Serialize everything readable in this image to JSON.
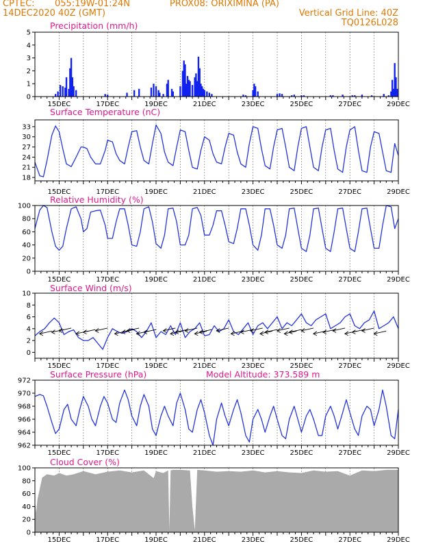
{
  "header": {
    "source": "CPTEC:",
    "coords": "055:19W-01:24N",
    "location": "PROX08: ORIXIMINA (PA)",
    "init_time": "14DEC2020 40Z (GMT)",
    "vgrid": "Vertical Grid Line: 40Z",
    "code": "TQ0126L028"
  },
  "colors": {
    "line": "#2233dd",
    "bar": "#1122ee",
    "cloud": "#aaaaaa",
    "title": "#e0188c",
    "header": "#e07800"
  },
  "chart_data": [
    {
      "type": "bar",
      "title": "Precipitation (mm/h)",
      "ylim": [
        0,
        5
      ],
      "yticks": [
        0,
        1,
        2,
        3,
        4,
        5
      ],
      "xlim": [
        14,
        29
      ],
      "xticks": [
        "15DEC",
        "17DEC",
        "19DEC",
        "21DEC",
        "23DEC",
        "25DEC",
        "27DEC",
        "29DEC"
      ],
      "x": [
        14.85,
        14.95,
        15.05,
        15.15,
        15.25,
        15.3,
        15.4,
        15.45,
        15.5,
        15.55,
        15.6,
        15.7,
        16.9,
        17.0,
        17.8,
        18.1,
        18.3,
        18.8,
        18.9,
        19.0,
        19.1,
        19.15,
        19.3,
        19.45,
        19.5,
        19.65,
        19.7,
        20.0,
        20.1,
        20.15,
        20.2,
        20.25,
        20.3,
        20.35,
        20.4,
        20.5,
        20.6,
        20.65,
        20.7,
        20.75,
        20.8,
        20.85,
        20.9,
        20.95,
        21.0,
        21.1,
        21.2,
        21.3,
        22.6,
        22.7,
        23.0,
        23.05,
        23.1,
        23.2,
        24.0,
        24.1,
        24.2,
        24.6,
        24.7,
        25.0,
        25.1,
        26.2,
        26.3,
        26.7,
        27.1,
        27.2,
        27.5,
        27.9,
        28.4,
        28.6,
        28.7,
        28.8,
        28.75,
        28.85,
        28.9,
        28.95
      ],
      "values": [
        0.2,
        0.4,
        0.9,
        0.8,
        0.7,
        1.5,
        0.6,
        2.2,
        3.0,
        1.5,
        0.8,
        0.5,
        0.2,
        0.15,
        0.3,
        0.5,
        0.6,
        0.7,
        1.0,
        0.8,
        0.5,
        0.3,
        0.2,
        1.0,
        1.3,
        0.6,
        0.4,
        0.8,
        2.0,
        2.8,
        2.5,
        1.0,
        1.6,
        1.3,
        1.2,
        0.9,
        1.5,
        1.8,
        1.2,
        3.1,
        2.2,
        1.0,
        0.8,
        0.6,
        0.5,
        0.4,
        0.3,
        0.2,
        0.15,
        0.1,
        0.5,
        1.0,
        0.8,
        0.4,
        0.2,
        0.25,
        0.2,
        0.1,
        0.15,
        0.1,
        0.1,
        0.1,
        0.1,
        0.15,
        0.1,
        0.1,
        0.15,
        0.1,
        0.2,
        0.1,
        0.4,
        0.6,
        1.3,
        2.6,
        1.5,
        0.6
      ]
    },
    {
      "type": "line",
      "title": "Surface Temperature (nC)",
      "ylim": [
        17,
        35
      ],
      "yticks": [
        18,
        21,
        24,
        27,
        30,
        33
      ],
      "xlim": [
        14,
        29
      ],
      "xticks": [
        "15DEC",
        "17DEC",
        "19DEC",
        "21DEC",
        "23DEC",
        "25DEC",
        "27DEC",
        "29DEC"
      ],
      "x": [
        14.0,
        14.2,
        14.35,
        14.5,
        14.7,
        14.85,
        15.0,
        15.15,
        15.3,
        15.5,
        15.7,
        15.9,
        16.0,
        16.15,
        16.3,
        16.5,
        16.7,
        16.9,
        17.0,
        17.2,
        17.35,
        17.5,
        17.7,
        17.85,
        18.0,
        18.2,
        18.35,
        18.5,
        18.7,
        18.85,
        19.0,
        19.2,
        19.35,
        19.5,
        19.7,
        19.85,
        20.0,
        20.2,
        20.35,
        20.5,
        20.7,
        20.85,
        21.0,
        21.2,
        21.35,
        21.5,
        21.7,
        21.85,
        22.0,
        22.2,
        22.35,
        22.5,
        22.7,
        22.85,
        23.0,
        23.2,
        23.35,
        23.5,
        23.7,
        23.85,
        24.0,
        24.2,
        24.35,
        24.5,
        24.7,
        24.85,
        25.0,
        25.2,
        25.35,
        25.5,
        25.7,
        25.85,
        26.0,
        26.2,
        26.35,
        26.5,
        26.7,
        26.85,
        27.0,
        27.2,
        27.35,
        27.5,
        27.7,
        27.85,
        28.0,
        28.2,
        28.35,
        28.5,
        28.7,
        28.85,
        29.0
      ],
      "values": [
        22.5,
        18.5,
        18.2,
        23.0,
        30.5,
        33.2,
        31.5,
        26.5,
        22.0,
        21.2,
        24.0,
        27.0,
        27.0,
        26.5,
        24.0,
        22.0,
        22.0,
        26.0,
        29.0,
        28.5,
        25.0,
        23.0,
        22.0,
        27.0,
        31.5,
        31.8,
        27.0,
        23.0,
        22.0,
        28.0,
        33.5,
        31.0,
        25.5,
        22.5,
        21.5,
        27.0,
        32.0,
        31.5,
        26.0,
        21.0,
        20.5,
        26.0,
        30.0,
        29.0,
        25.0,
        22.5,
        22.0,
        27.0,
        31.0,
        30.5,
        25.5,
        22.0,
        21.0,
        28.0,
        33.0,
        32.5,
        26.5,
        21.5,
        20.5,
        27.0,
        32.0,
        32.5,
        27.0,
        21.0,
        20.0,
        27.0,
        32.5,
        33.0,
        27.0,
        21.0,
        20.0,
        27.0,
        32.0,
        32.5,
        26.0,
        20.5,
        19.5,
        27.0,
        32.0,
        33.0,
        26.0,
        20.0,
        19.5,
        27.0,
        31.5,
        31.0,
        25.5,
        20.0,
        19.5,
        28.0,
        24.5
      ]
    },
    {
      "type": "line",
      "title": "Relative Humidity (%)",
      "ylim": [
        0,
        100
      ],
      "yticks": [
        0,
        20,
        40,
        60,
        80,
        100
      ],
      "xlim": [
        14,
        29
      ],
      "xticks": [
        "15DEC",
        "17DEC",
        "19DEC",
        "21DEC",
        "23DEC",
        "25DEC",
        "27DEC",
        "29DEC"
      ],
      "x": [
        14.0,
        14.2,
        14.35,
        14.5,
        14.7,
        14.85,
        15.0,
        15.15,
        15.3,
        15.5,
        15.7,
        15.9,
        16.0,
        16.15,
        16.3,
        16.5,
        16.7,
        16.9,
        17.0,
        17.2,
        17.35,
        17.5,
        17.7,
        17.85,
        18.0,
        18.2,
        18.35,
        18.5,
        18.7,
        18.85,
        19.0,
        19.2,
        19.35,
        19.5,
        19.7,
        19.85,
        20.0,
        20.2,
        20.35,
        20.5,
        20.7,
        20.85,
        21.0,
        21.2,
        21.35,
        21.5,
        21.7,
        21.85,
        22.0,
        22.2,
        22.35,
        22.5,
        22.7,
        22.85,
        23.0,
        23.2,
        23.35,
        23.5,
        23.7,
        23.85,
        24.0,
        24.2,
        24.35,
        24.5,
        24.7,
        24.85,
        25.0,
        25.2,
        25.35,
        25.5,
        25.7,
        25.85,
        26.0,
        26.2,
        26.35,
        26.5,
        26.7,
        26.85,
        27.0,
        27.2,
        27.35,
        27.5,
        27.7,
        27.85,
        28.0,
        28.2,
        28.35,
        28.5,
        28.7,
        28.85,
        29.0
      ],
      "values": [
        65,
        93,
        100,
        97,
        60,
        38,
        32,
        38,
        65,
        95,
        98,
        80,
        60,
        65,
        90,
        92,
        93,
        70,
        50,
        50,
        75,
        95,
        95,
        70,
        40,
        38,
        60,
        95,
        98,
        75,
        42,
        35,
        55,
        95,
        96,
        75,
        40,
        40,
        55,
        95,
        97,
        85,
        55,
        55,
        70,
        92,
        92,
        70,
        45,
        42,
        65,
        95,
        95,
        70,
        40,
        32,
        55,
        95,
        95,
        70,
        40,
        35,
        55,
        95,
        96,
        65,
        35,
        30,
        55,
        95,
        96,
        65,
        35,
        30,
        60,
        95,
        96,
        65,
        35,
        30,
        60,
        95,
        96,
        65,
        35,
        35,
        70,
        100,
        98,
        65,
        80
      ]
    },
    {
      "type": "line",
      "title": "Surface Wind (m/s)",
      "ylim": [
        -1,
        10
      ],
      "yticks": [
        0,
        2,
        4,
        6,
        8,
        10
      ],
      "xlim": [
        14,
        29
      ],
      "xticks": [
        "15DEC",
        "17DEC",
        "19DEC",
        "21DEC",
        "23DEC",
        "25DEC",
        "27DEC",
        "29DEC"
      ],
      "x": [
        14.0,
        14.2,
        14.4,
        14.6,
        14.8,
        15.0,
        15.2,
        15.4,
        15.6,
        15.8,
        16.0,
        16.2,
        16.4,
        16.6,
        16.8,
        17.0,
        17.2,
        17.4,
        17.6,
        17.8,
        18.0,
        18.2,
        18.4,
        18.6,
        18.8,
        19.0,
        19.2,
        19.4,
        19.6,
        19.8,
        20.0,
        20.2,
        20.4,
        20.6,
        20.8,
        21.0,
        21.2,
        21.4,
        21.6,
        21.8,
        22.0,
        22.2,
        22.4,
        22.6,
        22.8,
        23.0,
        23.2,
        23.4,
        23.6,
        23.8,
        24.0,
        24.2,
        24.4,
        24.6,
        24.8,
        25.0,
        25.2,
        25.4,
        25.6,
        25.8,
        26.0,
        26.2,
        26.4,
        26.6,
        26.8,
        27.0,
        27.2,
        27.4,
        27.6,
        27.8,
        28.0,
        28.2,
        28.4,
        28.6,
        28.8,
        29.0
      ],
      "values": [
        2.8,
        3.5,
        4.0,
        5.0,
        5.8,
        5.0,
        3.0,
        3.5,
        3.8,
        2.5,
        2.0,
        2.0,
        2.5,
        1.5,
        0.5,
        2.5,
        4.0,
        3.5,
        3.2,
        3.5,
        4.0,
        3.5,
        2.5,
        3.5,
        5.0,
        2.5,
        3.5,
        3.0,
        4.5,
        3.0,
        5.0,
        2.5,
        3.5,
        4.0,
        5.0,
        2.8,
        3.0,
        4.5,
        3.5,
        4.0,
        5.5,
        3.5,
        3.0,
        4.0,
        5.0,
        3.0,
        4.5,
        5.0,
        4.0,
        5.0,
        6.0,
        4.0,
        5.0,
        4.5,
        5.5,
        6.5,
        5.0,
        4.5,
        5.5,
        6.0,
        6.5,
        4.0,
        4.5,
        5.0,
        6.0,
        6.5,
        4.5,
        4.0,
        5.0,
        5.5,
        7.0,
        4.0,
        4.5,
        5.0,
        6.0,
        4.0
      ],
      "arrows_x": [
        14.7,
        15.2,
        15.5,
        16.2,
        16.5,
        17.0,
        17.8,
        18.1,
        18.3,
        18.7,
        19.0,
        19.8,
        20.1,
        20.3,
        20.7,
        21.1,
        21.3,
        22.0,
        22.6,
        23.0,
        23.4,
        23.8,
        24.0,
        24.5,
        24.8,
        25.0,
        25.5,
        26.0,
        26.4,
        26.8,
        27.3,
        27.6,
        28.0,
        28.5
      ]
    },
    {
      "type": "line",
      "title": "Surface Pressure (hPa)",
      "annotation": "Model Altitude: 373.589  m",
      "ylim": [
        962,
        972
      ],
      "yticks": [
        962,
        964,
        966,
        968,
        970,
        972
      ],
      "xlim": [
        14,
        29
      ],
      "xticks": [
        "15DEC",
        "17DEC",
        "19DEC",
        "21DEC",
        "23DEC",
        "25DEC",
        "27DEC",
        "29DEC"
      ],
      "x": [
        14.0,
        14.2,
        14.35,
        14.5,
        14.7,
        14.85,
        15.0,
        15.2,
        15.35,
        15.5,
        15.7,
        15.85,
        16.0,
        16.2,
        16.35,
        16.5,
        16.7,
        16.85,
        17.0,
        17.2,
        17.35,
        17.5,
        17.7,
        17.85,
        18.0,
        18.2,
        18.35,
        18.5,
        18.7,
        18.85,
        19.0,
        19.2,
        19.35,
        19.5,
        19.7,
        19.85,
        20.0,
        20.2,
        20.35,
        20.5,
        20.7,
        20.85,
        21.0,
        21.2,
        21.35,
        21.5,
        21.7,
        21.85,
        22.0,
        22.2,
        22.35,
        22.5,
        22.7,
        22.85,
        23.0,
        23.2,
        23.35,
        23.5,
        23.7,
        23.85,
        24.0,
        24.2,
        24.35,
        24.5,
        24.7,
        24.85,
        25.0,
        25.2,
        25.35,
        25.5,
        25.7,
        25.85,
        26.0,
        26.2,
        26.35,
        26.5,
        26.7,
        26.85,
        27.0,
        27.2,
        27.35,
        27.5,
        27.7,
        27.85,
        28.0,
        28.2,
        28.35,
        28.5,
        28.7,
        28.85,
        29.0
      ],
      "values": [
        969.5,
        969.8,
        969.6,
        968.0,
        965.5,
        963.8,
        964.5,
        967.5,
        968.3,
        966.0,
        965.0,
        967.5,
        969.5,
        968.0,
        966.0,
        965.0,
        968.0,
        969.5,
        968.5,
        966.0,
        965.5,
        968.5,
        970.5,
        969.0,
        966.5,
        965.0,
        968.0,
        969.8,
        968.0,
        964.5,
        963.5,
        966.5,
        968.0,
        966.5,
        965.0,
        968.5,
        970.0,
        967.5,
        964.5,
        964.0,
        967.5,
        969.0,
        967.0,
        963.5,
        962.0,
        966.0,
        968.5,
        966.5,
        965.0,
        967.5,
        969.0,
        967.0,
        963.5,
        962.5,
        966.0,
        967.5,
        966.0,
        964.0,
        966.5,
        968.0,
        966.0,
        963.5,
        963.0,
        966.0,
        968.0,
        966.0,
        964.0,
        966.5,
        967.5,
        966.0,
        963.5,
        963.5,
        966.5,
        968.0,
        966.5,
        964.5,
        967.0,
        969.0,
        967.0,
        964.5,
        963.5,
        966.5,
        968.0,
        967.5,
        965.0,
        967.5,
        970.5,
        968.0,
        963.5,
        963.0,
        967.5
      ]
    },
    {
      "type": "area",
      "title": "Cloud Cover (%)",
      "ylim": [
        0,
        100
      ],
      "yticks": [
        0,
        20,
        40,
        60,
        80,
        100
      ],
      "xlim": [
        14,
        29
      ],
      "xticks": [
        "15DEC",
        "17DEC",
        "19DEC",
        "21DEC",
        "23DEC",
        "25DEC",
        "27DEC",
        "29DEC"
      ],
      "x": [
        14.0,
        14.05,
        14.1,
        14.3,
        14.5,
        14.8,
        15.0,
        15.3,
        15.6,
        16.0,
        16.5,
        17.0,
        17.5,
        18.0,
        18.5,
        18.9,
        19.0,
        19.3,
        19.5,
        19.55,
        19.6,
        19.7,
        20.0,
        20.4,
        20.5,
        20.6,
        20.7,
        21.0,
        21.5,
        22.0,
        22.5,
        23.0,
        23.5,
        24.0,
        24.5,
        25.0,
        25.5,
        26.0,
        26.5,
        27.0,
        27.5,
        28.0,
        28.5,
        29.0
      ],
      "values": [
        50,
        30,
        50,
        85,
        90,
        88,
        92,
        88,
        90,
        95,
        90,
        94,
        96,
        93,
        96,
        84,
        95,
        92,
        96,
        3,
        96,
        97,
        97,
        96,
        40,
        3,
        97,
        96,
        94,
        95,
        94,
        96,
        93,
        95,
        93,
        92,
        96,
        94,
        95,
        88,
        96,
        95,
        97,
        97
      ]
    }
  ]
}
